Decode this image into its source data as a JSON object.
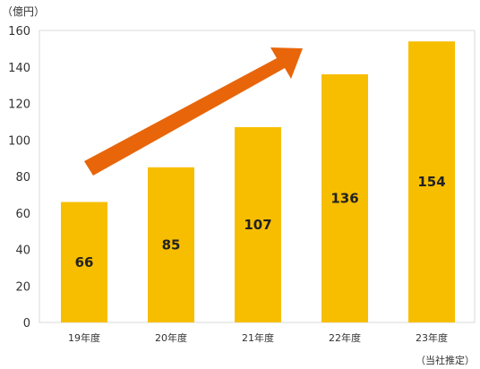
{
  "chart_data": {
    "type": "bar",
    "categories": [
      "19年度",
      "20年度",
      "21年度",
      "22年度",
      "23年度"
    ],
    "values": [
      66,
      85,
      107,
      136,
      154
    ],
    "data_labels": [
      "66",
      "85",
      "107",
      "136",
      "154"
    ],
    "yticks": [
      "0",
      "20",
      "40",
      "60",
      "80",
      "100",
      "120",
      "140",
      "160"
    ],
    "ylim": [
      0,
      160
    ],
    "unit_label": "（億円）",
    "note": "（当社推定）",
    "grid": false,
    "annotation": "upward-trend-arrow",
    "colors": {
      "bar": "#F7BE00",
      "arrow": "#E8650A",
      "plot_border": "#D9D9D9"
    }
  }
}
